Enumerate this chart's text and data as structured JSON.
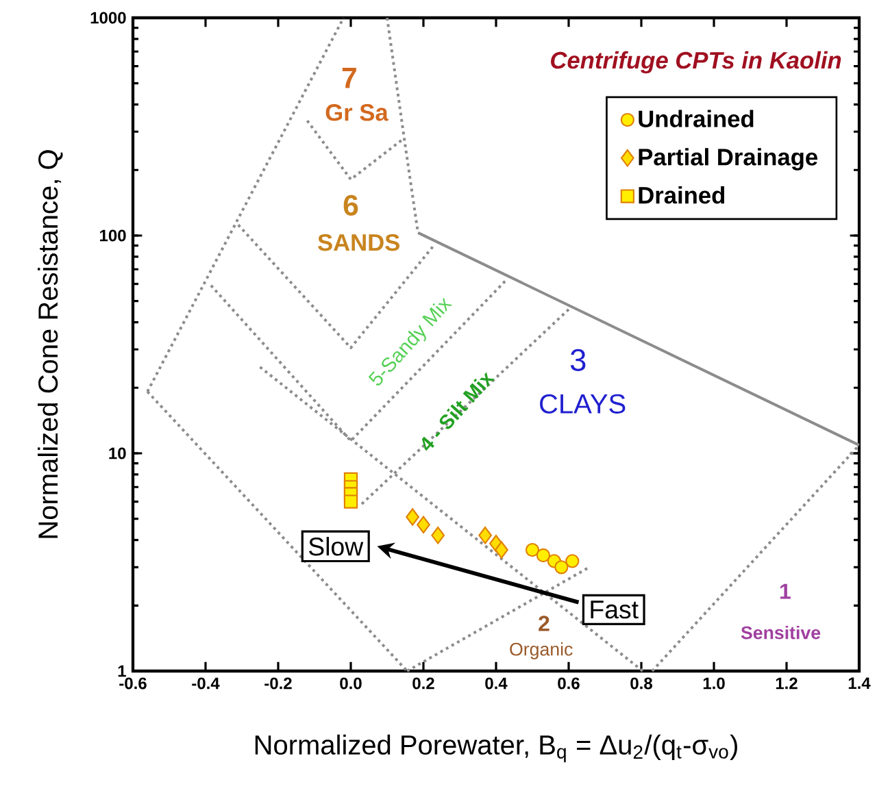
{
  "chart_data": {
    "type": "scatter",
    "xlabel": "Normalized Porewater, B$_{q}$ = Δu$_{2}$/(q$_{t}$-σ$_{vo}$)",
    "ylabel": "Normalized  Cone Resistance, Q",
    "legend_title": "Centrifuge CPTs in Kaolin",
    "legend": "top right",
    "log": "y",
    "xlim": [
      -0.6,
      1.4
    ],
    "ylim": [
      1,
      1000
    ],
    "xticks": [
      {
        "value": -0.6,
        "label": "-0.6"
      },
      {
        "value": -0.4,
        "label": "-0.4"
      },
      {
        "value": -0.2,
        "label": "-0.2"
      },
      {
        "value": 0,
        "label": "0.0"
      },
      {
        "value": 0.2,
        "label": "0.2"
      },
      {
        "value": 0.4,
        "label": "0.4"
      },
      {
        "value": 0.6,
        "label": "0.6"
      },
      {
        "value": 0.8,
        "label": "0.8"
      },
      {
        "value": 1,
        "label": "1.0"
      },
      {
        "value": 1.2,
        "label": "1.2"
      },
      {
        "value": 1.4,
        "label": "1.4"
      }
    ],
    "yticks": [
      1,
      10,
      100,
      1000
    ],
    "series": [
      {
        "name": "Undrained",
        "marker": "circle",
        "color": "#ffee00",
        "x": [
          0.5,
          0.53,
          0.56,
          0.58,
          0.61
        ],
        "values": [
          3.6,
          3.4,
          3.2,
          3.0,
          3.2
        ]
      },
      {
        "name": "Partial Drainage",
        "marker": "diamond",
        "color": "#ffdd00",
        "x": [
          0.17,
          0.2,
          0.24,
          0.37,
          0.4,
          0.415
        ],
        "values": [
          5.1,
          4.7,
          4.2,
          4.2,
          3.85,
          3.6
        ]
      },
      {
        "name": "Drained",
        "marker": "square",
        "color": "#ffee00",
        "x": [
          0.0,
          0.0,
          0.0,
          0.0
        ],
        "values": [
          7.6,
          7.0,
          6.5,
          6.0
        ]
      },
      {
        "type": "line",
        "line_style": "dotted",
        "color": "#8c8c8c",
        "x": [
          -0.56,
          -0.02
        ],
        "values": [
          19.2,
          1000
        ]
      },
      {
        "type": "line",
        "line_style": "dotted",
        "color": "#8c8c8c",
        "x": [
          0.1,
          0.147,
          0.185
        ],
        "values": [
          1000,
          280,
          103
        ]
      },
      {
        "type": "line",
        "line_style": "solid",
        "color": "#8c8c8c",
        "x": [
          0.185,
          1.4
        ],
        "values": [
          103,
          10.9
        ]
      },
      {
        "type": "line",
        "line_style": "dotted",
        "color": "#8c8c8c",
        "x": [
          -0.12,
          0.0,
          0.147
        ],
        "values": [
          337,
          181,
          280
        ]
      },
      {
        "type": "line",
        "line_style": "dotted",
        "color": "#8c8c8c",
        "x": [
          -0.31,
          0.0,
          0.226
        ],
        "values": [
          112,
          30.5,
          89
        ]
      },
      {
        "type": "line",
        "line_style": "dotted",
        "color": "#8c8c8c",
        "x": [
          -0.385,
          0.0,
          0.426
        ],
        "values": [
          59,
          11.4,
          62
        ]
      },
      {
        "type": "line",
        "line_style": "dotted",
        "color": "#8c8c8c",
        "x": [
          0.6,
          0.023
        ],
        "values": [
          45.8,
          5.7
        ]
      },
      {
        "type": "line",
        "line_style": "dotted",
        "color": "#8c8c8c",
        "x": [
          -0.56,
          0.155
        ],
        "values": [
          19.2,
          1
        ]
      },
      {
        "type": "line",
        "line_style": "dotted",
        "color": "#8c8c8c",
        "x": [
          0.155,
          0.657
        ],
        "values": [
          1,
          3.0
        ]
      },
      {
        "type": "line",
        "line_style": "dotted",
        "color": "#8c8c8c",
        "x": [
          -0.25,
          0.804
        ],
        "values": [
          24.9,
          1
        ]
      },
      {
        "type": "line",
        "line_style": "dotted",
        "color": "#8c8c8c",
        "x": [
          0.83,
          1.4
        ],
        "values": [
          1,
          10.9
        ]
      }
    ],
    "annotations": [
      "7",
      "Gr Sa",
      "6",
      "SANDS",
      "5-Sandy Mix",
      "4 - Silt Mix",
      "3",
      "CLAYS",
      "2",
      "Organic",
      "1",
      "Sensitive",
      "Slow",
      "Fast"
    ]
  }
}
